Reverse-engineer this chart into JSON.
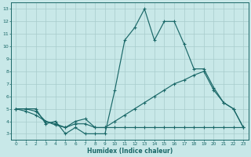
{
  "xlabel": "Humidex (Indice chaleur)",
  "xlim": [
    -0.5,
    23.5
  ],
  "ylim": [
    2.5,
    13.5
  ],
  "xticks": [
    0,
    1,
    2,
    3,
    4,
    5,
    6,
    7,
    8,
    9,
    10,
    11,
    12,
    13,
    14,
    15,
    16,
    17,
    18,
    19,
    20,
    21,
    22,
    23
  ],
  "yticks": [
    3,
    4,
    5,
    6,
    7,
    8,
    9,
    10,
    11,
    12,
    13
  ],
  "bg_color": "#c8e8e8",
  "line_color": "#1a6868",
  "grid_color": "#a8cccc",
  "lines": [
    {
      "x": [
        0,
        1,
        2,
        3,
        4,
        5,
        6,
        7,
        8,
        9,
        10,
        11,
        12,
        13,
        14,
        15,
        16,
        17,
        18,
        19,
        20,
        21,
        22,
        23
      ],
      "y": [
        5.0,
        5.0,
        5.0,
        3.8,
        4.0,
        3.0,
        3.5,
        3.0,
        3.0,
        3.0,
        6.5,
        10.5,
        11.5,
        13.0,
        10.5,
        12.0,
        12.0,
        10.2,
        8.2,
        8.2,
        6.7,
        5.5,
        5.0,
        3.5
      ]
    },
    {
      "x": [
        0,
        1,
        2,
        3,
        4,
        5,
        6,
        7,
        8,
        9,
        10,
        11,
        12,
        13,
        14,
        15,
        16,
        17,
        18,
        19,
        20,
        21,
        22,
        23
      ],
      "y": [
        5.0,
        5.0,
        4.8,
        4.0,
        3.7,
        3.5,
        3.8,
        3.8,
        3.5,
        3.5,
        4.0,
        4.5,
        5.0,
        5.5,
        6.0,
        6.5,
        7.0,
        7.3,
        7.7,
        8.0,
        6.5,
        5.5,
        5.0,
        3.5
      ]
    },
    {
      "x": [
        0,
        1,
        2,
        3,
        4,
        5,
        6,
        7,
        8,
        9,
        10,
        11,
        12,
        13,
        14,
        15,
        16,
        17,
        18,
        19,
        20,
        21,
        22,
        23
      ],
      "y": [
        5.0,
        4.8,
        4.5,
        4.0,
        3.8,
        3.5,
        4.0,
        4.2,
        3.5,
        3.5,
        3.5,
        3.5,
        3.5,
        3.5,
        3.5,
        3.5,
        3.5,
        3.5,
        3.5,
        3.5,
        3.5,
        3.5,
        3.5,
        3.5
      ]
    }
  ]
}
